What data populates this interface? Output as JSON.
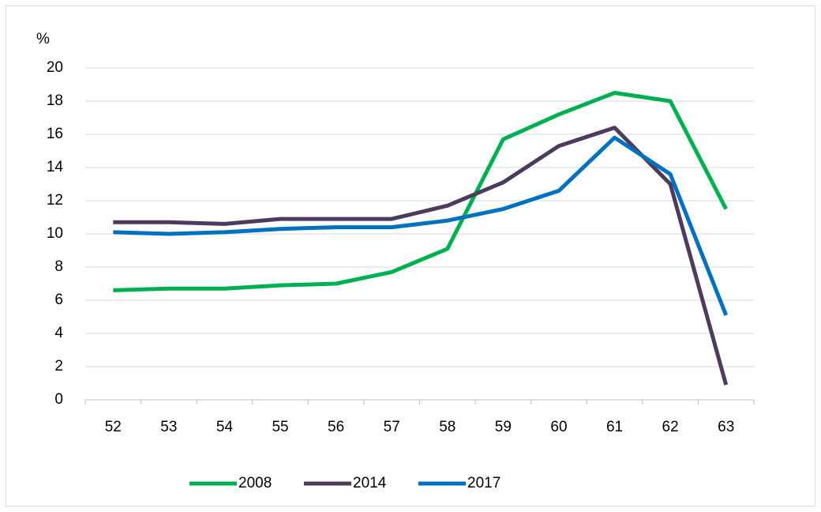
{
  "chart_data": {
    "type": "line",
    "y_label": "%",
    "categories": [
      "52",
      "53",
      "54",
      "55",
      "56",
      "57",
      "58",
      "59",
      "60",
      "61",
      "62",
      "63"
    ],
    "series": [
      {
        "name": "2008",
        "color": "#00b050",
        "values": [
          6.6,
          6.7,
          6.7,
          6.9,
          7.0,
          7.7,
          9.1,
          15.7,
          17.2,
          18.5,
          18.0,
          11.5
        ]
      },
      {
        "name": "2014",
        "color": "#4d3b5e",
        "values": [
          10.7,
          10.7,
          10.6,
          10.9,
          10.9,
          10.9,
          11.7,
          13.1,
          15.3,
          16.4,
          13.0,
          0.9
        ]
      },
      {
        "name": "2017",
        "color": "#0070c0",
        "values": [
          10.1,
          10.0,
          10.1,
          10.3,
          10.4,
          10.4,
          10.8,
          11.5,
          12.6,
          15.8,
          13.6,
          5.1
        ]
      }
    ],
    "ylim": [
      0,
      20
    ],
    "yticks": [
      0,
      2,
      4,
      6,
      8,
      10,
      12,
      14,
      16,
      18,
      20
    ],
    "grid": true,
    "legend": "bottom"
  }
}
